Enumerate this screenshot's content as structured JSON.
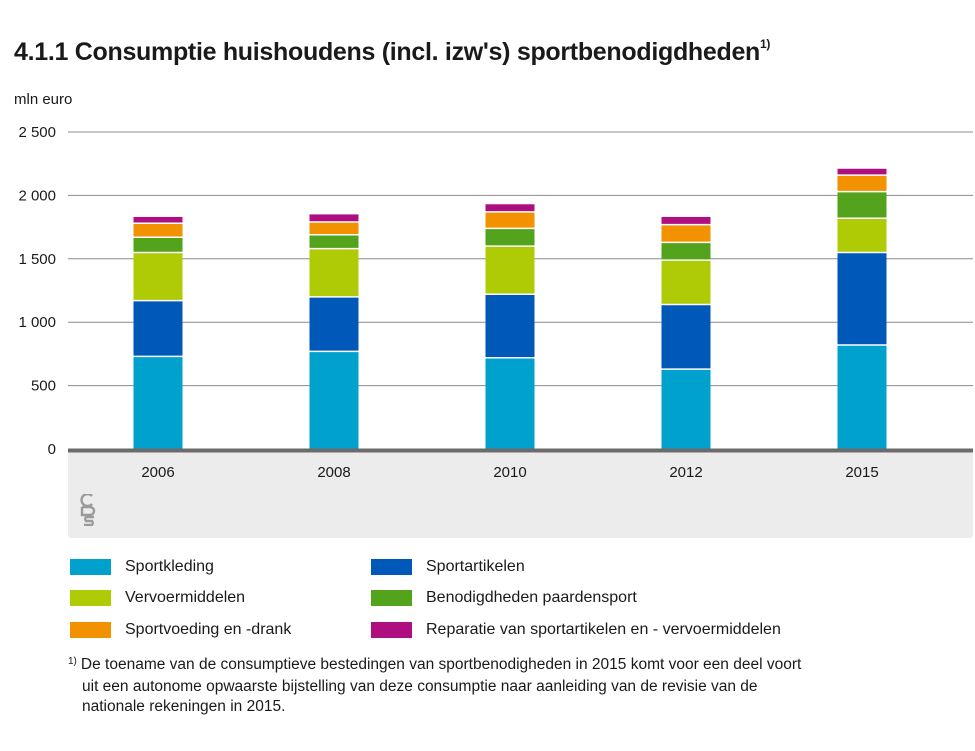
{
  "header": {
    "title": "4.1.1 Consumptie huishoudens (incl. izw's) sportbenodigdheden",
    "title_note": "1)",
    "unit": "mln euro"
  },
  "chart_data": {
    "type": "bar",
    "stacked": true,
    "categories": [
      "2006",
      "2008",
      "2010",
      "2012",
      "2015"
    ],
    "ylim": [
      0,
      2500
    ],
    "yticks": [
      0,
      500,
      1000,
      1500,
      2000,
      2500
    ],
    "ytick_labels": [
      "0",
      "500",
      "1 000",
      "1 500",
      "2 000",
      "2 500"
    ],
    "ylabel": "mln euro",
    "grid": true,
    "legend_position": "bottom",
    "series": [
      {
        "name": "Sportkleding",
        "color": "#00a1cd",
        "values": [
          730,
          770,
          720,
          630,
          820
        ]
      },
      {
        "name": "Sportartikelen",
        "color": "#0058b8",
        "values": [
          440,
          430,
          500,
          510,
          730
        ]
      },
      {
        "name": "Vervoermiddelen",
        "color": "#afcb05",
        "values": [
          380,
          380,
          380,
          350,
          270
        ]
      },
      {
        "name": "Benodigdheden paardensport",
        "color": "#53a31d",
        "values": [
          120,
          110,
          140,
          140,
          210
        ]
      },
      {
        "name": "Sportvoeding en -drank",
        "color": "#f39200",
        "values": [
          110,
          100,
          130,
          140,
          130
        ]
      },
      {
        "name": "Reparatie van sportartikelen en - vervoermiddelen",
        "color": "#af0e80",
        "values": [
          50,
          60,
          60,
          60,
          50
        ]
      }
    ]
  },
  "footnote": {
    "mark": "1)",
    "lines": [
      "De toename van de consumptieve bestedingen van sportbenodigheden in 2015 komt voor een deel voort",
      "uit een autonome opwaarste bijstelling van deze consumptie naar aanleiding van de revisie van de",
      "nationale rekeningen in 2015."
    ]
  },
  "logo": {
    "icon": "cbs-logo-icon"
  }
}
